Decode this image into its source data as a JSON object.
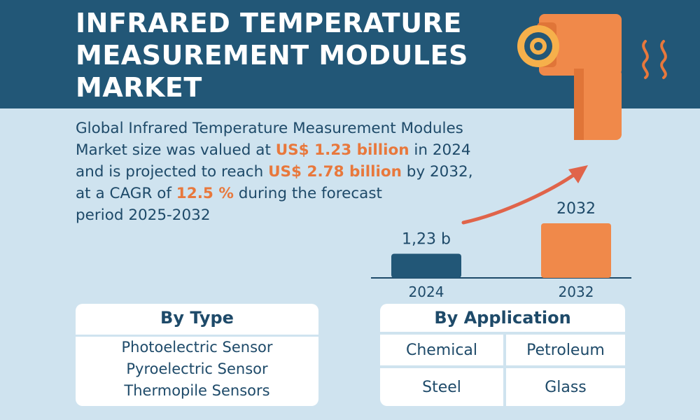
{
  "header": {
    "title_lines": [
      "INFRARED TEMPERATURE",
      "MEASUREMENT MODULES",
      "MARKET"
    ]
  },
  "summary": {
    "l1": "Global Infrared Temperature Measurement Modules",
    "l2a": "Market size was valued at ",
    "l2b": "US$ 1.23 billion",
    "l2c": " in 2024",
    "l3a": "and is projected to reach ",
    "l3b": "US$ 2.78 billion",
    "l3c": " by 2032,",
    "l4a": "at a CAGR of ",
    "l4b": "12.5 %",
    "l4c": " during the forecast",
    "l5": "period 2025-2032"
  },
  "chart": {
    "bars": [
      {
        "year": "2024",
        "label": "1,23 b",
        "value": 1.23,
        "color": "#225777"
      },
      {
        "year": "2032",
        "label": "2032",
        "value": 2.78,
        "color": "#f0894a"
      }
    ]
  },
  "by_type": {
    "title": "By Type",
    "items": [
      "Photoelectric Sensor",
      "Pyroelectric Sensor",
      "Thermopile Sensors"
    ]
  },
  "by_application": {
    "title": "By Application",
    "items": [
      "Chemical",
      "Petroleum",
      "Steel",
      "Glass"
    ]
  },
  "colors": {
    "header": "#225777",
    "background": "#cfe3ef",
    "accent": "#e8783c",
    "text": "#1e4a69"
  },
  "icons": [
    "thermometer-gun-icon",
    "heat-waves-icon",
    "growth-arrow-icon"
  ]
}
